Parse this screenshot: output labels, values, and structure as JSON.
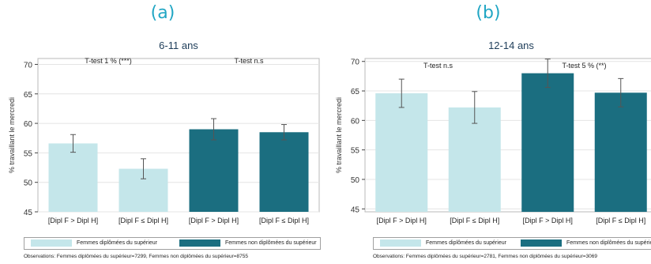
{
  "colors": {
    "light": "#c4e6ea",
    "dark": "#1b6e80",
    "letter": "#21a6c4",
    "title": "#1e3d59"
  },
  "chart_data": [
    {
      "type": "bar",
      "panel": "(a)",
      "title": "6-11 ans",
      "ylabel": "% travaillant le mercredi",
      "ylim": [
        45,
        71
      ],
      "yticks": [
        45,
        50,
        55,
        60,
        65,
        70
      ],
      "categories": [
        "[Dipl F > Dipl H]",
        "[Dipl F ≤ Dipl H]",
        "[Dipl F > Dipl H]",
        "[Dipl F ≤ Dipl H]"
      ],
      "values": [
        56.6,
        52.3,
        59.0,
        58.5
      ],
      "ci_low": [
        55.1,
        50.6,
        57.2,
        57.2
      ],
      "ci_high": [
        58.1,
        54.0,
        60.8,
        59.8
      ],
      "series_index": [
        0,
        0,
        1,
        1
      ],
      "annotations": [
        "T-test 1 % (***)",
        "T-test n.s"
      ],
      "legend": [
        "Femmes diplômées du supérieur",
        "Femmes non diplômées du supérieur"
      ],
      "observations": "Observations: Femmes diplômées du supérieur=7299, Femmes non diplômées du supérieur=8755"
    },
    {
      "type": "bar",
      "panel": "(b)",
      "title": "12-14 ans",
      "ylabel": "% travaillant le mercredi",
      "ylim": [
        44.5,
        70.5
      ],
      "yticks": [
        45,
        50,
        55,
        60,
        65,
        70
      ],
      "categories": [
        "[Dipl F > Dipl H]",
        "[Dipl F ≤ Dipl H]",
        "[Dipl F > Dipl H]",
        "[Dipl F ≤ Dipl H]"
      ],
      "values": [
        64.6,
        62.2,
        68.0,
        64.7
      ],
      "ci_low": [
        62.2,
        59.5,
        65.6,
        62.3
      ],
      "ci_high": [
        67.0,
        64.9,
        70.4,
        67.1
      ],
      "series_index": [
        0,
        0,
        1,
        1
      ],
      "annotations": [
        "T-test n.s",
        "T-test 5 % (**)"
      ],
      "legend": [
        "Femmes diplômées du supérieur",
        "Femmes non diplômées du supérieur"
      ],
      "observations": "Observations: Femmes diplômées du supérieur=2781, Femmes non diplômées du supérieur=3069"
    }
  ]
}
